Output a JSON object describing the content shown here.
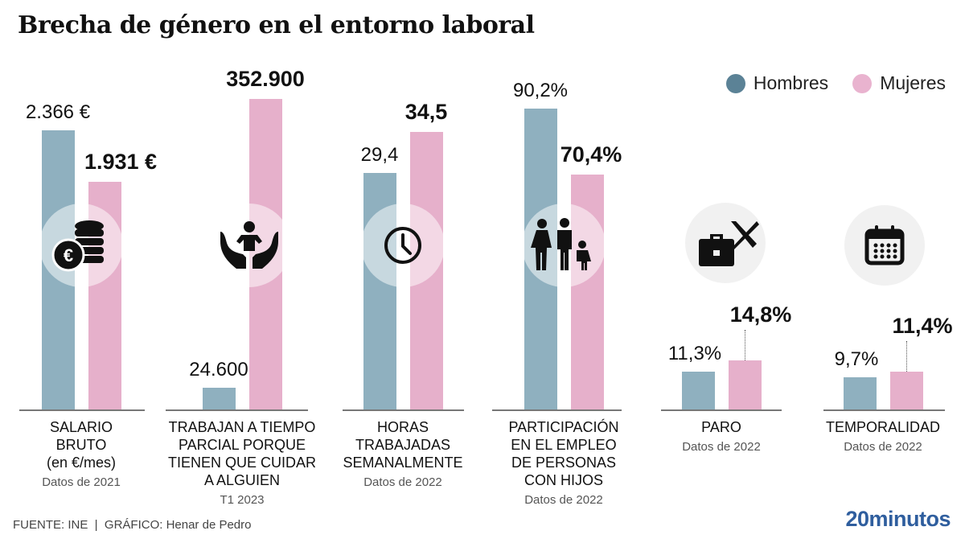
{
  "title": "Brecha de género en el entorno laboral",
  "legend": [
    {
      "label": "Hombres",
      "color": "#5b8296"
    },
    {
      "label": "Mujeres",
      "color": "#e9b3cf"
    }
  ],
  "colors": {
    "hombres_bar": "#8fb0bf",
    "mujeres_bar": "#e6b0cb"
  },
  "chart_data": [
    {
      "type": "bar",
      "categories": [
        "Hombres",
        "Mujeres"
      ],
      "values": [
        2366,
        1931
      ],
      "value_labels": [
        "2.366 €",
        "1.931 €"
      ],
      "label_lines": [
        "SALARIO",
        "BRUTO",
        "(en €/mes)"
      ],
      "note": "Datos de 2021",
      "icon": "euro-coins-icon"
    },
    {
      "type": "bar",
      "categories": [
        "Hombres",
        "Mujeres"
      ],
      "values": [
        24600,
        352900
      ],
      "value_labels": [
        "24.600",
        "352.900"
      ],
      "label_lines": [
        "TRABAJAN A TIEMPO",
        "PARCIAL PORQUE",
        "TIENEN QUE CUIDAR",
        "A ALGUIEN"
      ],
      "note": "T1 2023",
      "icon": "caring-hands-icon"
    },
    {
      "type": "bar",
      "categories": [
        "Hombres",
        "Mujeres"
      ],
      "values": [
        29.4,
        34.5
      ],
      "value_labels": [
        "29,4",
        "34,5"
      ],
      "label_lines": [
        "HORAS",
        "TRABAJADAS",
        "SEMANALMENTE"
      ],
      "note": "Datos de 2022",
      "icon": "clock-icon"
    },
    {
      "type": "bar",
      "categories": [
        "Hombres",
        "Mujeres"
      ],
      "values": [
        90.2,
        70.4
      ],
      "value_labels": [
        "90,2%",
        "70,4%"
      ],
      "label_lines": [
        "PARTICIPACIÓN",
        "EN EL EMPLEO",
        "DE PERSONAS",
        "CON HIJOS"
      ],
      "note": "Datos de 2022",
      "icon": "family-icon"
    },
    {
      "type": "bar",
      "categories": [
        "Hombres",
        "Mujeres"
      ],
      "values": [
        11.3,
        14.8
      ],
      "value_labels": [
        "11,3%",
        "14,8%"
      ],
      "label_lines": [
        "PARO"
      ],
      "note": "Datos de 2022",
      "icon": "briefcase-cross-icon"
    },
    {
      "type": "bar",
      "categories": [
        "Hombres",
        "Mujeres"
      ],
      "values": [
        9.7,
        11.4
      ],
      "value_labels": [
        "9,7%",
        "11,4%"
      ],
      "label_lines": [
        "TEMPORALIDAD"
      ],
      "note": "Datos de 2022",
      "icon": "calendar-icon"
    }
  ],
  "footer": "FUENTE: INE  |  GRÁFICO: Henar de Pedro",
  "logo": "20minutos"
}
